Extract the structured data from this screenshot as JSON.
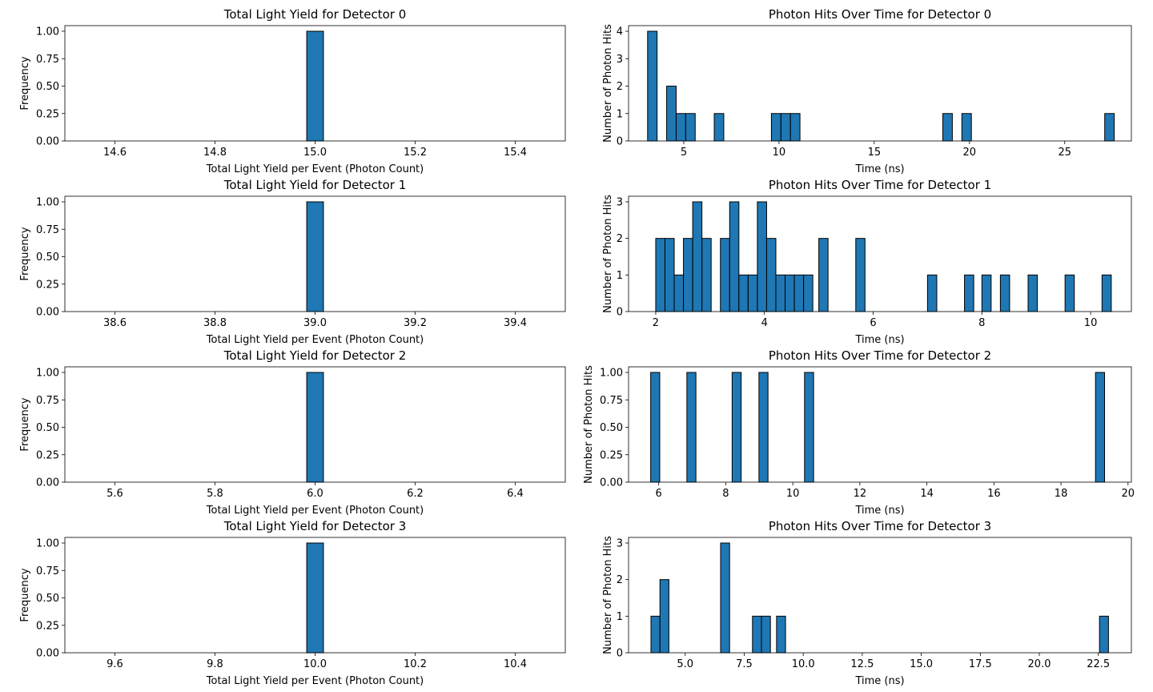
{
  "colors": {
    "bar": "#1f77b4",
    "edge": "#000000"
  },
  "chart_data": [
    {
      "type": "bar",
      "title": "Total Light Yield for Detector 0",
      "xlabel": "Total Light Yield per Event (Photon Count)",
      "ylabel": "Frequency",
      "xlim": [
        14.5,
        15.5
      ],
      "ylim": [
        0,
        1.0
      ],
      "xticks": [
        14.6,
        14.8,
        15.0,
        15.2,
        15.4
      ],
      "xtick_labels": [
        "14.6",
        "14.8",
        "15.0",
        "15.2",
        "15.4"
      ],
      "yticks": [
        0,
        0.25,
        0.5,
        0.75,
        1.0
      ],
      "ytick_labels": [
        "0.00",
        "0.25",
        "0.50",
        "0.75",
        "1.00"
      ],
      "bars": [
        {
          "x0": 14.9833,
          "x1": 15.0167,
          "value": 1
        }
      ]
    },
    {
      "type": "bar",
      "title": "Photon Hits Over Time for Detector 0",
      "xlabel": "Time (ns)",
      "ylabel": "Number of Photon Hits",
      "xlim": [
        2.1,
        28.5
      ],
      "ylim": [
        0,
        4
      ],
      "xticks": [
        5,
        10,
        15,
        20,
        25
      ],
      "xtick_labels": [
        "5",
        "10",
        "15",
        "20",
        "25"
      ],
      "yticks": [
        0,
        1,
        2,
        3,
        4
      ],
      "ytick_labels": [
        "0",
        "1",
        "2",
        "3",
        "4"
      ],
      "bars": [
        {
          "x0": 3.1,
          "x1": 3.6,
          "value": 4
        },
        {
          "x0": 4.1,
          "x1": 4.6,
          "value": 2
        },
        {
          "x0": 4.6,
          "x1": 5.1,
          "value": 1
        },
        {
          "x0": 5.1,
          "x1": 5.6,
          "value": 1
        },
        {
          "x0": 6.6,
          "x1": 7.1,
          "value": 1
        },
        {
          "x0": 9.6,
          "x1": 10.1,
          "value": 1
        },
        {
          "x0": 10.1,
          "x1": 10.6,
          "value": 1
        },
        {
          "x0": 10.6,
          "x1": 11.1,
          "value": 1
        },
        {
          "x0": 18.6,
          "x1": 19.1,
          "value": 1
        },
        {
          "x0": 19.6,
          "x1": 20.1,
          "value": 1
        },
        {
          "x0": 27.1,
          "x1": 27.6,
          "value": 1
        }
      ]
    },
    {
      "type": "bar",
      "title": "Total Light Yield for Detector 1",
      "xlabel": "Total Light Yield per Event (Photon Count)",
      "ylabel": "Frequency",
      "xlim": [
        38.5,
        39.5
      ],
      "ylim": [
        0,
        1.0
      ],
      "xticks": [
        38.6,
        38.8,
        39.0,
        39.2,
        39.4
      ],
      "xtick_labels": [
        "38.6",
        "38.8",
        "39.0",
        "39.2",
        "39.4"
      ],
      "yticks": [
        0,
        0.25,
        0.5,
        0.75,
        1.0
      ],
      "ytick_labels": [
        "0.00",
        "0.25",
        "0.50",
        "0.75",
        "1.00"
      ],
      "bars": [
        {
          "x0": 38.9833,
          "x1": 39.0167,
          "value": 1
        }
      ]
    },
    {
      "type": "bar",
      "title": "Photon Hits Over Time for Detector 1",
      "xlabel": "Time (ns)",
      "ylabel": "Number of Photon Hits",
      "xlim": [
        1.5,
        10.75
      ],
      "ylim": [
        0,
        3
      ],
      "xticks": [
        2,
        4,
        6,
        8,
        10
      ],
      "xtick_labels": [
        "2",
        "4",
        "6",
        "8",
        "10"
      ],
      "yticks": [
        0,
        1,
        2,
        3
      ],
      "ytick_labels": [
        "0",
        "1",
        "2",
        "3"
      ],
      "bars": [
        {
          "x0": 2.0,
          "x1": 2.17,
          "value": 2
        },
        {
          "x0": 2.17,
          "x1": 2.34,
          "value": 2
        },
        {
          "x0": 2.34,
          "x1": 2.51,
          "value": 1
        },
        {
          "x0": 2.51,
          "x1": 2.68,
          "value": 2
        },
        {
          "x0": 2.68,
          "x1": 2.85,
          "value": 3
        },
        {
          "x0": 2.85,
          "x1": 3.02,
          "value": 2
        },
        {
          "x0": 3.19,
          "x1": 3.36,
          "value": 2
        },
        {
          "x0": 3.36,
          "x1": 3.53,
          "value": 3
        },
        {
          "x0": 3.53,
          "x1": 3.7,
          "value": 1
        },
        {
          "x0": 3.7,
          "x1": 3.87,
          "value": 1
        },
        {
          "x0": 3.87,
          "x1": 4.04,
          "value": 3
        },
        {
          "x0": 4.04,
          "x1": 4.21,
          "value": 2
        },
        {
          "x0": 4.21,
          "x1": 4.38,
          "value": 1
        },
        {
          "x0": 4.38,
          "x1": 4.55,
          "value": 1
        },
        {
          "x0": 4.55,
          "x1": 4.72,
          "value": 1
        },
        {
          "x0": 4.72,
          "x1": 4.89,
          "value": 1
        },
        {
          "x0": 5.0,
          "x1": 5.17,
          "value": 2
        },
        {
          "x0": 5.68,
          "x1": 5.85,
          "value": 2
        },
        {
          "x0": 7.0,
          "x1": 7.17,
          "value": 1
        },
        {
          "x0": 7.68,
          "x1": 7.85,
          "value": 1
        },
        {
          "x0": 8.0,
          "x1": 8.17,
          "value": 1
        },
        {
          "x0": 8.34,
          "x1": 8.51,
          "value": 1
        },
        {
          "x0": 8.85,
          "x1": 9.02,
          "value": 1
        },
        {
          "x0": 9.53,
          "x1": 9.7,
          "value": 1
        },
        {
          "x0": 10.21,
          "x1": 10.38,
          "value": 1
        }
      ]
    },
    {
      "type": "bar",
      "title": "Total Light Yield for Detector 2",
      "xlabel": "Total Light Yield per Event (Photon Count)",
      "ylabel": "Frequency",
      "xlim": [
        5.5,
        6.5
      ],
      "ylim": [
        0,
        1.0
      ],
      "xticks": [
        5.6,
        5.8,
        6.0,
        6.2,
        6.4
      ],
      "xtick_labels": [
        "5.6",
        "5.8",
        "6.0",
        "6.2",
        "6.4"
      ],
      "yticks": [
        0,
        0.25,
        0.5,
        0.75,
        1.0
      ],
      "ytick_labels": [
        "0.00",
        "0.25",
        "0.50",
        "0.75",
        "1.00"
      ],
      "bars": [
        {
          "x0": 5.9833,
          "x1": 6.0167,
          "value": 1
        }
      ]
    },
    {
      "type": "bar",
      "title": "Photon Hits Over Time for Detector 2",
      "xlabel": "Time (ns)",
      "ylabel": "Number of Photon Hits",
      "xlim": [
        5.1,
        20.1
      ],
      "ylim": [
        0,
        1.0
      ],
      "xticks": [
        6,
        8,
        10,
        12,
        14,
        16,
        18,
        20
      ],
      "xtick_labels": [
        "6",
        "8",
        "10",
        "12",
        "14",
        "16",
        "18",
        "20"
      ],
      "yticks": [
        0,
        0.25,
        0.5,
        0.75,
        1.0
      ],
      "ytick_labels": [
        "0.00",
        "0.25",
        "0.50",
        "0.75",
        "1.00"
      ],
      "bars": [
        {
          "x0": 5.76,
          "x1": 6.03,
          "value": 1
        },
        {
          "x0": 6.84,
          "x1": 7.11,
          "value": 1
        },
        {
          "x0": 8.19,
          "x1": 8.46,
          "value": 1
        },
        {
          "x0": 8.99,
          "x1": 9.26,
          "value": 1
        },
        {
          "x0": 10.35,
          "x1": 10.62,
          "value": 1
        },
        {
          "x0": 19.03,
          "x1": 19.3,
          "value": 1
        }
      ]
    },
    {
      "type": "bar",
      "title": "Total Light Yield for Detector 3",
      "xlabel": "Total Light Yield per Event (Photon Count)",
      "ylabel": "Frequency",
      "xlim": [
        9.5,
        10.5
      ],
      "ylim": [
        0,
        1.0
      ],
      "xticks": [
        9.6,
        9.8,
        10.0,
        10.2,
        10.4
      ],
      "xtick_labels": [
        "9.6",
        "9.8",
        "10.0",
        "10.2",
        "10.4"
      ],
      "yticks": [
        0,
        0.25,
        0.5,
        0.75,
        1.0
      ],
      "ytick_labels": [
        "0.00",
        "0.25",
        "0.50",
        "0.75",
        "1.00"
      ],
      "bars": [
        {
          "x0": 9.9833,
          "x1": 10.0167,
          "value": 1
        }
      ]
    },
    {
      "type": "bar",
      "title": "Photon Hits Over Time for Detector 3",
      "xlabel": "Time (ns)",
      "ylabel": "Number of Photon Hits",
      "xlim": [
        2.6,
        23.9
      ],
      "ylim": [
        0,
        3
      ],
      "xticks": [
        5.0,
        7.5,
        10.0,
        12.5,
        15.0,
        17.5,
        20.0,
        22.5
      ],
      "xtick_labels": [
        "5.0",
        "7.5",
        "10.0",
        "12.5",
        "15.0",
        "17.5",
        "20.0",
        "22.5"
      ],
      "yticks": [
        0,
        1,
        2,
        3
      ],
      "ytick_labels": [
        "0",
        "1",
        "2",
        "3"
      ],
      "bars": [
        {
          "x0": 3.55,
          "x1": 3.93,
          "value": 1
        },
        {
          "x0": 3.93,
          "x1": 4.31,
          "value": 2
        },
        {
          "x0": 6.5,
          "x1": 6.88,
          "value": 3
        },
        {
          "x0": 7.85,
          "x1": 8.23,
          "value": 1
        },
        {
          "x0": 8.23,
          "x1": 8.61,
          "value": 1
        },
        {
          "x0": 8.87,
          "x1": 9.25,
          "value": 1
        },
        {
          "x0": 22.55,
          "x1": 22.93,
          "value": 1
        }
      ]
    }
  ]
}
